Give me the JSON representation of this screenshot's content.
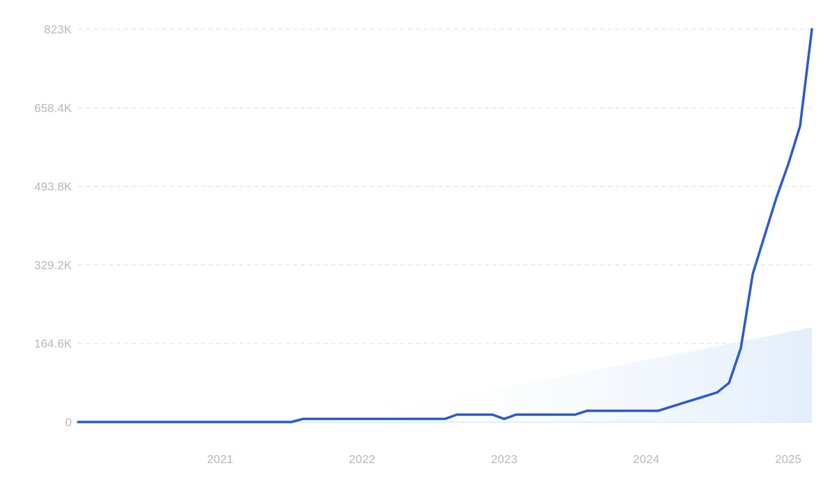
{
  "chart_data": {
    "type": "line",
    "title": "",
    "xlabel": "",
    "ylabel": "",
    "x_ticks": [
      "2021",
      "2022",
      "2023",
      "2024",
      "2025"
    ],
    "y_ticks": [
      "0",
      "164.6K",
      "329.2K",
      "493.8K",
      "658.4K",
      "823K"
    ],
    "ylim": [
      0,
      823000
    ],
    "xlim": [
      "2020-06",
      "2025-06"
    ],
    "grid": true,
    "legend": "none",
    "colors": {
      "line": "#2b59d2",
      "trend_fill": "#e3eefc",
      "grid": "#dde3ea",
      "tick_text": "#b3b9c2"
    },
    "series": [
      {
        "values": [
          {
            "x": "2020-06",
            "y": 0
          },
          {
            "x": "2021-01",
            "y": 0
          },
          {
            "x": "2021-06",
            "y": 0
          },
          {
            "x": "2021-12",
            "y": 0
          },
          {
            "x": "2022-01",
            "y": 6500
          },
          {
            "x": "2022-06",
            "y": 6500
          },
          {
            "x": "2022-12",
            "y": 6500
          },
          {
            "x": "2023-01",
            "y": 6500
          },
          {
            "x": "2023-02",
            "y": 15500
          },
          {
            "x": "2023-05",
            "y": 15500
          },
          {
            "x": "2023-06",
            "y": 6500
          },
          {
            "x": "2023-07",
            "y": 15500
          },
          {
            "x": "2023-12",
            "y": 15500
          },
          {
            "x": "2024-01",
            "y": 23500
          },
          {
            "x": "2024-07",
            "y": 23500
          },
          {
            "x": "2024-09",
            "y": 39000
          },
          {
            "x": "2024-12",
            "y": 62000
          },
          {
            "x": "2025-01",
            "y": 82000
          },
          {
            "x": "2025-02",
            "y": 155000
          },
          {
            "x": "2025-03",
            "y": 310000
          },
          {
            "x": "2025-05",
            "y": 470000
          },
          {
            "x": "2025-06",
            "y": 540000
          },
          {
            "x": "2025-07",
            "y": 620000
          },
          {
            "x": "2025-08",
            "y": 823000
          }
        ]
      }
    ],
    "trend": {
      "start": {
        "x": "2022-03",
        "y": 0
      },
      "end": {
        "x": "2025-08",
        "y": 198000
      }
    }
  }
}
